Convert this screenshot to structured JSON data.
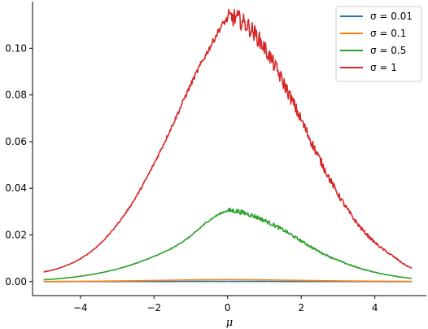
{
  "chart_data": {
    "type": "line",
    "xlabel": "μ",
    "ylabel": "",
    "title": "",
    "xlim": [
      -5.3,
      5.4
    ],
    "ylim": [
      -0.006,
      0.12
    ],
    "xticks": [
      -4,
      -2,
      0,
      2,
      4
    ],
    "xtick_labels": [
      "−4",
      "−2",
      "0",
      "2",
      "4"
    ],
    "yticks": [
      0.0,
      0.02,
      0.04,
      0.06,
      0.08,
      0.1
    ],
    "ytick_labels": [
      "0.00",
      "0.02",
      "0.04",
      "0.06",
      "0.08",
      "0.10"
    ],
    "grid": false,
    "legend_position": "top-right",
    "x": [
      -5,
      -4.5,
      -4,
      -3.5,
      -3,
      -2.5,
      -2,
      -1.5,
      -1,
      -0.5,
      0,
      0.5,
      1,
      1.5,
      2,
      2.5,
      3,
      3.5,
      4,
      4.5,
      5
    ],
    "series": [
      {
        "name": "σ = 0.01",
        "color": "#1f77b4",
        "values": [
          1e-05,
          1e-05,
          2e-05,
          2e-05,
          3e-05,
          4e-05,
          5e-05,
          6e-05,
          7e-05,
          8e-05,
          8e-05,
          8e-05,
          7e-05,
          6e-05,
          5e-05,
          4e-05,
          3e-05,
          2e-05,
          2e-05,
          1e-05,
          1e-05
        ]
      },
      {
        "name": "σ = 0.1",
        "color": "#ff7f0e",
        "values": [
          5e-05,
          8e-05,
          0.00012,
          0.00018,
          0.00026,
          0.00036,
          0.00048,
          0.0006,
          0.00072,
          0.0008,
          0.00084,
          0.0008,
          0.00072,
          0.00062,
          0.0005,
          0.0004,
          0.00031,
          0.00023,
          0.00017,
          0.00012,
          8e-05
        ]
      },
      {
        "name": "σ = 0.5",
        "color": "#2ca02c",
        "values": [
          0.0008,
          0.0014,
          0.0023,
          0.0036,
          0.0054,
          0.0078,
          0.0108,
          0.0144,
          0.0196,
          0.0262,
          0.0303,
          0.0292,
          0.0262,
          0.0222,
          0.0174,
          0.0128,
          0.0091,
          0.0062,
          0.004,
          0.0025,
          0.0014
        ]
      },
      {
        "name": "σ = 1",
        "color": "#d62728",
        "values": [
          0.0042,
          0.0062,
          0.0098,
          0.0157,
          0.0245,
          0.036,
          0.0505,
          0.067,
          0.0845,
          0.0999,
          0.1125,
          0.1102,
          0.1002,
          0.0857,
          0.0692,
          0.0525,
          0.0375,
          0.0254,
          0.0168,
          0.0108,
          0.0058
        ]
      }
    ]
  }
}
